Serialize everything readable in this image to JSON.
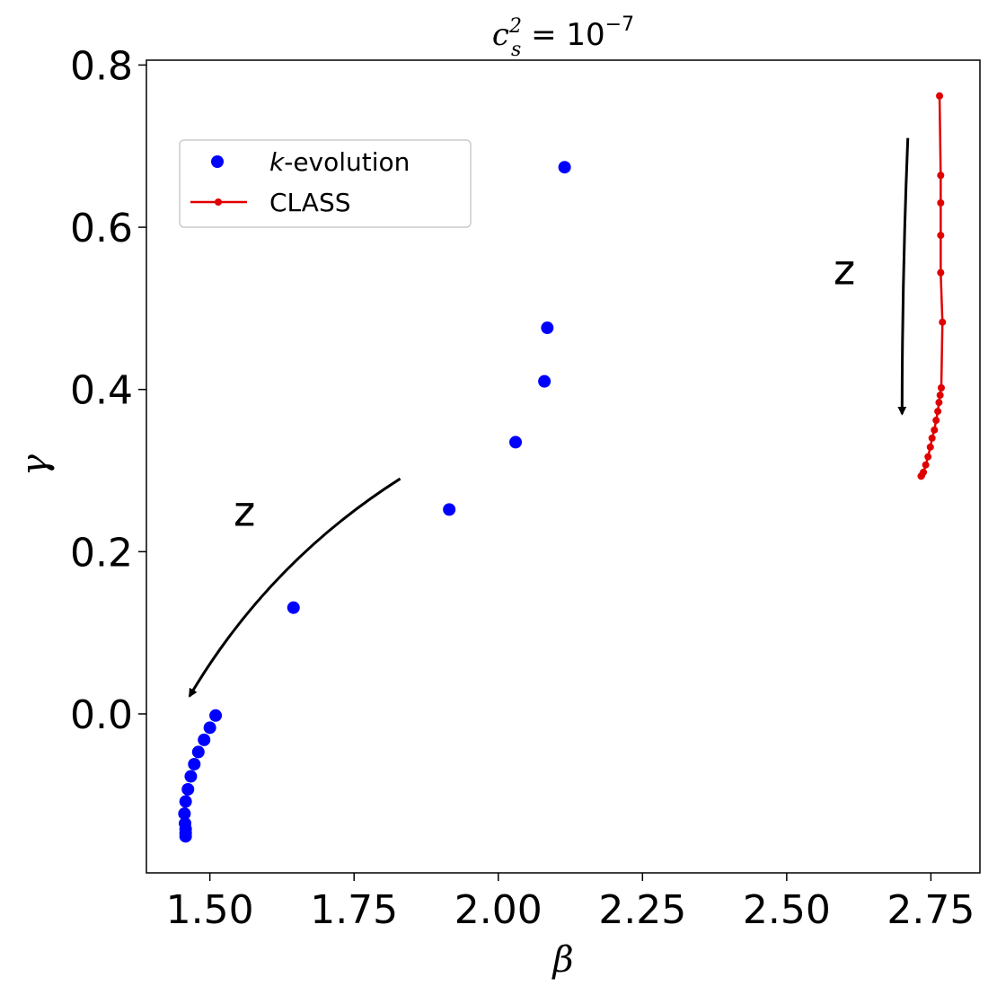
{
  "chart_data": {
    "type": "scatter",
    "title": {
      "base": "c",
      "sup": "2",
      "sub": "s",
      "rhs": " = 10",
      "exp": "−7"
    },
    "xlabel": "β",
    "ylabel": "γ",
    "xlim": [
      1.39,
      2.835
    ],
    "ylim": [
      -0.196,
      0.806
    ],
    "xticks": [
      1.5,
      1.75,
      2.0,
      2.25,
      2.5,
      2.75
    ],
    "xtick_labels": [
      "1.50",
      "1.75",
      "2.00",
      "2.25",
      "2.50",
      "2.75"
    ],
    "yticks": [
      0.0,
      0.2,
      0.4,
      0.6,
      0.8
    ],
    "ytick_labels": [
      "0.0",
      "0.2",
      "0.4",
      "0.6",
      "0.8"
    ],
    "grid": false,
    "legend_position": "upper-left",
    "series": [
      {
        "name": "k-evolution",
        "name_italic": "k",
        "name_rest": "-evolution",
        "style": "markers",
        "color": "#0000ff",
        "points": [
          [
            2.115,
            0.674
          ],
          [
            2.085,
            0.476
          ],
          [
            2.08,
            0.41
          ],
          [
            2.03,
            0.335
          ],
          [
            1.915,
            0.252
          ],
          [
            1.645,
            0.131
          ],
          [
            1.51,
            -0.002
          ],
          [
            1.5,
            -0.017
          ],
          [
            1.49,
            -0.032
          ],
          [
            1.48,
            -0.047
          ],
          [
            1.473,
            -0.062
          ],
          [
            1.467,
            -0.077
          ],
          [
            1.462,
            -0.093
          ],
          [
            1.458,
            -0.108
          ],
          [
            1.456,
            -0.123
          ],
          [
            1.457,
            -0.135
          ],
          [
            1.458,
            -0.142
          ],
          [
            1.458,
            -0.147
          ],
          [
            1.458,
            -0.151
          ]
        ]
      },
      {
        "name": "CLASS",
        "style": "line-markers",
        "color": "#e00000",
        "points": [
          [
            2.765,
            0.762
          ],
          [
            2.767,
            0.664
          ],
          [
            2.767,
            0.63
          ],
          [
            2.767,
            0.59
          ],
          [
            2.767,
            0.544
          ],
          [
            2.77,
            0.483
          ],
          [
            2.768,
            0.402
          ],
          [
            2.766,
            0.393
          ],
          [
            2.764,
            0.384
          ],
          [
            2.762,
            0.373
          ],
          [
            2.759,
            0.362
          ],
          [
            2.756,
            0.35
          ],
          [
            2.752,
            0.34
          ],
          [
            2.749,
            0.329
          ],
          [
            2.745,
            0.317
          ],
          [
            2.741,
            0.307
          ],
          [
            2.737,
            0.298
          ],
          [
            2.734,
            0.294
          ],
          [
            2.733,
            0.293
          ]
        ]
      }
    ],
    "annotations": [
      {
        "text": "z",
        "x": 2.6,
        "y": 0.53
      },
      {
        "text": "z",
        "x": 1.56,
        "y": 0.232
      }
    ],
    "arrows": [
      {
        "from": [
          2.71,
          0.71
        ],
        "to": [
          2.7,
          0.37
        ],
        "bend": 0.01
      },
      {
        "from": [
          1.83,
          0.29
        ],
        "to": [
          1.465,
          0.022
        ],
        "bend": 0.12
      }
    ]
  }
}
